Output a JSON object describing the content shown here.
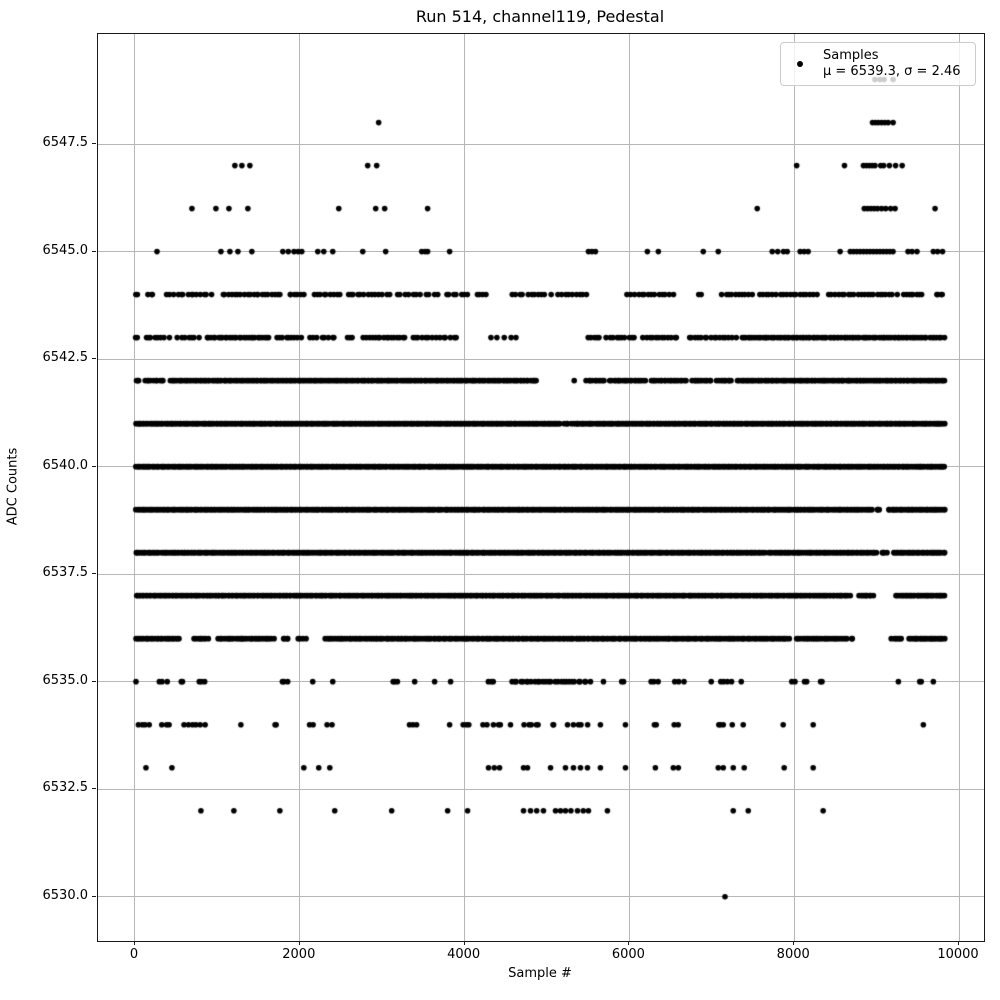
{
  "figure": {
    "title": "Run 514, channel119, Pedestal"
  },
  "chart_data": {
    "type": "scatter",
    "title": "Run 514, channel119, Pedestal",
    "xlabel": "Sample #",
    "ylabel": "ADC Counts",
    "xlim": [
      -449,
      10303
    ],
    "ylim": [
      6528.97,
      6550.06
    ],
    "x_ticks": [
      0,
      2000,
      4000,
      6000,
      8000,
      10000
    ],
    "x_tick_labels": [
      "0",
      "2000",
      "4000",
      "6000",
      "8000",
      "10000"
    ],
    "y_ticks": [
      6530.0,
      6532.5,
      6535.0,
      6537.5,
      6540.0,
      6542.5,
      6545.0,
      6547.5
    ],
    "y_tick_labels": [
      "6530.0",
      "6532.5",
      "6535.0",
      "6537.5",
      "6540.0",
      "6542.5",
      "6545.0",
      "6547.5"
    ],
    "grid": true,
    "grid_color": "#b7b7b7",
    "marker": {
      "shape": "dot",
      "color": "#000000",
      "radius_px": 2.8
    },
    "mu": 6539.3,
    "sigma": 2.46,
    "legend": {
      "position": "upper right",
      "entries": [
        {
          "label": "Samples",
          "sublabel": "μ = 6539.3, σ = 2.46",
          "marker": "dot"
        }
      ]
    },
    "series": [
      {
        "name": "Samples",
        "color": "#000000",
        "bands": [
          {
            "adc": 6549,
            "xs": [
              8980,
              9040,
              9090,
              9200
            ]
          },
          {
            "adc": 6548,
            "xs": [
              2957,
              8950,
              8985,
              9020,
              9060,
              9100,
              9140,
              9200
            ]
          },
          {
            "adc": 6547,
            "xs": [
              1212,
              1297,
              1394,
              2824,
              2933,
              8030,
              8610,
              8840,
              8875,
              8910,
              8945,
              8980,
              9050,
              9085,
              9155,
              9230,
              9310
            ]
          },
          {
            "adc": 6546,
            "xs": [
              691,
              982,
              1140,
              1370,
              2473,
              2921,
              3030,
              3551,
              7551,
              8850,
              8890,
              8930,
              8970,
              9010,
              9060,
              9110,
              9170,
              9224,
              9709
            ]
          },
          {
            "adc": 6545,
            "xs": [
              267,
              1043,
              1152,
              1249,
              1418,
              1794,
              1860,
              1930,
              1980,
              2024,
              2218,
              2291,
              2400,
              2764,
              3042,
              3480,
              3520,
              3551,
              3818,
              5503,
              5545,
              5588,
              6218,
              6351,
              6896,
              7078,
              7733,
              7800,
              7870,
              7915,
              8072,
              8120,
              8169,
              8557,
              8680,
              8720,
              8760,
              8800,
              8840,
              8880,
              8920,
              8960,
              9000,
              9040,
              9080,
              9120,
              9160,
              9199,
              9381,
              9430,
              9490,
              9688,
              9740,
              9800
            ]
          },
          {
            "adc": 6544,
            "segments": [
              [
                0,
                30,
                2
              ],
              [
                110,
                250,
                3
              ],
              [
                370,
                930,
                14
              ],
              [
                1040,
                1780,
                20
              ],
              [
                1850,
                2050,
                6
              ],
              [
                2150,
                2500,
                9
              ],
              [
                2550,
                3100,
                13
              ],
              [
                3150,
                3700,
                11
              ],
              [
                3750,
                4050,
                7
              ],
              [
                4120,
                4290,
                4
              ],
              [
                4550,
                5050,
                11
              ],
              [
                5100,
                5500,
                9
              ],
              [
                5950,
                6550,
                14
              ],
              [
                6830,
                6870,
                2
              ],
              [
                7100,
                7500,
                10
              ],
              [
                7550,
                8300,
                18
              ],
              [
                8400,
                9250,
                22
              ],
              [
                9300,
                9567,
                8
              ],
              [
                9712,
                9809,
                4
              ]
            ]
          },
          {
            "adc": 6543,
            "segments": [
              [
                0,
                30,
                2
              ],
              [
                100,
                420,
                8
              ],
              [
                500,
                780,
                7
              ],
              [
                850,
                1640,
                28
              ],
              [
                1700,
                2030,
                9
              ],
              [
                2100,
                2450,
                8
              ],
              [
                2560,
                2640,
                3
              ],
              [
                2760,
                3290,
                16
              ],
              [
                3340,
                3920,
                14
              ],
              [
                4230,
                4700,
                5
              ],
              [
                5490,
                5640,
                5
              ],
              [
                5700,
                6080,
                10
              ],
              [
                6140,
                6600,
                12
              ],
              [
                6700,
                7300,
                16
              ],
              [
                7350,
                9615,
                90
              ],
              [
                9627,
                9833,
                7
              ]
            ]
          },
          {
            "adc": 6542,
            "segments": [
              [
                0,
                60,
                3
              ],
              [
                100,
                360,
                10
              ],
              [
                420,
                4885,
                215
              ],
              [
                5330,
                5340,
                1
              ],
              [
                5467,
                5700,
                10
              ],
              [
                5750,
                6200,
                20
              ],
              [
                6250,
                6700,
                20
              ],
              [
                6750,
                7000,
                12
              ],
              [
                7050,
                7250,
                9
              ],
              [
                7300,
                9833,
                125
              ]
            ]
          },
          {
            "adc": 6541,
            "segments": [
              [
                0,
                5170,
                255
              ],
              [
                5185,
                5300,
                4
              ],
              [
                5310,
                9833,
                225
              ]
            ]
          },
          {
            "adc": 6540,
            "segments": [
              [
                0,
                9833,
                490
              ]
            ]
          },
          {
            "adc": 6539,
            "segments": [
              [
                0,
                8945,
                445
              ],
              [
                8995,
                9045,
                3
              ],
              [
                9130,
                9833,
                38
              ]
            ]
          },
          {
            "adc": 6538,
            "segments": [
              [
                0,
                7648,
                380
              ],
              [
                7684,
                9006,
                65
              ],
              [
                9054,
                9127,
                4
              ],
              [
                9199,
                9833,
                34
              ]
            ]
          },
          {
            "adc": 6537,
            "segments": [
              [
                0,
                8680,
                420
              ],
              [
                8780,
                8960,
                9
              ],
              [
                9230,
                9833,
                32
              ]
            ]
          },
          {
            "adc": 6536,
            "segments": [
              [
                0,
                545,
                24
              ],
              [
                700,
                890,
                8
              ],
              [
                1000,
                1690,
                30
              ],
              [
                1790,
                1870,
                4
              ],
              [
                1950,
                2080,
                4
              ],
              [
                2300,
                7950,
                242
              ],
              [
                8010,
                8640,
                26
              ],
              [
                8695,
                8710,
                2
              ],
              [
                9167,
                9312,
                6
              ],
              [
                9385,
                9833,
                22
              ]
            ]
          },
          {
            "adc": 6535,
            "segments": [
              [
                12,
                12,
                1
              ],
              [
                290,
                390,
                3
              ],
              [
                560,
                580,
                2
              ],
              [
                750,
                860,
                3
              ],
              [
                1758,
                1879,
                3
              ],
              [
                2157,
                2157,
                1
              ],
              [
                2400,
                2400,
                1
              ],
              [
                3103,
                3212,
                3
              ],
              [
                3394,
                3394,
                1
              ],
              [
                3636,
                3636,
                1
              ],
              [
                3830,
                3830,
                1
              ],
              [
                4266,
                4363,
                3
              ],
              [
                4545,
                5530,
                28
              ],
              [
                5685,
                5685,
                1
              ],
              [
                5891,
                5952,
                2
              ],
              [
                6254,
                6351,
                3
              ],
              [
                6497,
                6715,
                3
              ],
              [
                6993,
                6993,
                1
              ],
              [
                7091,
                7248,
                4
              ],
              [
                7357,
                7357,
                1
              ],
              [
                7951,
                8011,
                2
              ],
              [
                8109,
                8169,
                2
              ],
              [
                8315,
                8339,
                2
              ],
              [
                9264,
                9264,
                1
              ],
              [
                9494,
                9567,
                2
              ],
              [
                9688,
                9688,
                1
              ]
            ]
          },
          {
            "adc": 6534,
            "segments": [
              [
                0,
                194,
                4
              ],
              [
                315,
                424,
                3
              ],
              [
                558,
                885,
                6
              ],
              [
                1285,
                1285,
                1
              ],
              [
                1685,
                1733,
                2
              ],
              [
                2109,
                2182,
                2
              ],
              [
                2303,
                2448,
                2
              ],
              [
                3309,
                3454,
                3
              ],
              [
                3818,
                3818,
                1
              ],
              [
                3976,
                4073,
                3
              ],
              [
                4194,
                4278,
                2
              ],
              [
                4315,
                4460,
                3
              ],
              [
                4557,
                4557,
                1
              ],
              [
                4715,
                4921,
                5
              ],
              [
                5043,
                5103,
                2
              ],
              [
                5224,
                5491,
                5
              ],
              [
                5648,
                5648,
                1
              ],
              [
                5952,
                5952,
                1
              ],
              [
                6291,
                6339,
                2
              ],
              [
                6533,
                6594,
                2
              ],
              [
                7066,
                7139,
                3
              ],
              [
                7248,
                7248,
                1
              ],
              [
                7381,
                7381,
                1
              ],
              [
                7866,
                7866,
                1
              ],
              [
                8230,
                8230,
                1
              ],
              [
                9567,
                9567,
                1
              ]
            ]
          },
          {
            "adc": 6533,
            "xs": [
              133,
              448,
              2049,
              2230,
              2364,
              4290,
              4360,
              4424,
              4715,
              4763,
              5043,
              5224,
              5321,
              5406,
              5491,
              5648,
              5952,
              6315,
              6533,
              6594,
              7078,
              7139,
              7260,
              7393,
              7878,
              8230
            ]
          },
          {
            "adc": 6532,
            "xs": [
              800,
              1200,
              1758,
              2424,
              3115,
              3794,
              4036,
              4715,
              4800,
              4875,
              4957,
              5103,
              5164,
              5224,
              5290,
              5370,
              5440,
              5503,
              5733,
              7260,
              7442,
              8351
            ]
          },
          {
            "adc": 6530,
            "xs": [
              7160
            ]
          }
        ]
      }
    ]
  }
}
